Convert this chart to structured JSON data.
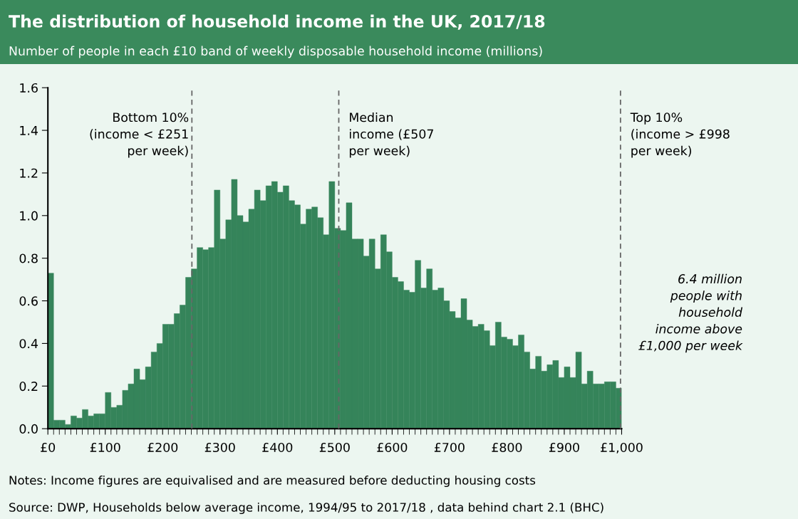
{
  "chart_data": {
    "type": "histogram",
    "title": "The distribution of household income in the UK, 2017/18",
    "subtitle": "Number of people in each £10 band of weekly disposable household income (millions)",
    "bins": [
      0,
      10,
      20,
      30,
      40,
      50,
      60,
      70,
      80,
      90,
      100,
      110,
      120,
      130,
      140,
      150,
      160,
      170,
      180,
      190,
      200,
      210,
      220,
      230,
      240,
      250,
      260,
      270,
      280,
      290,
      300,
      310,
      320,
      330,
      340,
      350,
      360,
      370,
      380,
      390,
      400,
      410,
      420,
      430,
      440,
      450,
      460,
      470,
      480,
      490,
      500,
      510,
      520,
      530,
      540,
      550,
      560,
      570,
      580,
      590,
      600,
      610,
      620,
      630,
      640,
      650,
      660,
      670,
      680,
      690,
      700,
      710,
      720,
      730,
      740,
      750,
      760,
      770,
      780,
      790,
      800,
      810,
      820,
      830,
      840,
      850,
      860,
      870,
      880,
      890,
      900,
      910,
      920,
      930,
      940,
      950,
      960,
      970,
      980,
      990,
      1000
    ],
    "values": [
      0.73,
      0.04,
      0.04,
      0.02,
      0.06,
      0.05,
      0.09,
      0.06,
      0.07,
      0.07,
      0.17,
      0.1,
      0.11,
      0.18,
      0.21,
      0.28,
      0.23,
      0.29,
      0.36,
      0.4,
      0.49,
      0.49,
      0.54,
      0.58,
      0.71,
      0.75,
      0.85,
      0.84,
      0.85,
      1.12,
      0.89,
      0.98,
      1.17,
      1.0,
      0.97,
      1.03,
      1.12,
      1.07,
      1.14,
      1.16,
      1.11,
      1.14,
      1.07,
      1.05,
      0.96,
      1.03,
      1.04,
      0.99,
      0.91,
      1.16,
      0.94,
      0.93,
      1.06,
      0.89,
      0.89,
      0.81,
      0.89,
      0.75,
      0.91,
      0.83,
      0.71,
      0.69,
      0.65,
      0.64,
      0.79,
      0.66,
      0.75,
      0.65,
      0.66,
      0.6,
      0.55,
      0.52,
      0.61,
      0.51,
      0.48,
      0.49,
      0.46,
      0.39,
      0.5,
      0.43,
      0.42,
      0.39,
      0.44,
      0.36,
      0.28,
      0.34,
      0.27,
      0.3,
      0.32,
      0.24,
      0.29,
      0.24,
      0.36,
      0.21,
      0.27,
      0.21,
      0.21,
      0.22,
      0.22,
      0.19
    ],
    "color": "#35845a",
    "xlim": [
      0,
      1000
    ],
    "xticks": [
      {
        "value": 0,
        "label": "£0"
      },
      {
        "value": 100,
        "label": "£100"
      },
      {
        "value": 200,
        "label": "£200"
      },
      {
        "value": 300,
        "label": "£300"
      },
      {
        "value": 400,
        "label": "£400"
      },
      {
        "value": 500,
        "label": "£500"
      },
      {
        "value": 600,
        "label": "£600"
      },
      {
        "value": 700,
        "label": "£700"
      },
      {
        "value": 800,
        "label": "£800"
      },
      {
        "value": 900,
        "label": "£900"
      },
      {
        "value": 1000,
        "label": "£1,000"
      }
    ],
    "ylim": [
      0,
      1.6
    ],
    "yticks": [
      {
        "value": 0,
        "label": "0.0"
      },
      {
        "value": 0.2,
        "label": "0.2"
      },
      {
        "value": 0.4,
        "label": "0.4"
      },
      {
        "value": 0.6,
        "label": "0.6"
      },
      {
        "value": 0.8,
        "label": "0.8"
      },
      {
        "value": 1.0,
        "label": "1.0"
      },
      {
        "value": 1.2,
        "label": "1.2"
      },
      {
        "value": 1.4,
        "label": "1.4"
      },
      {
        "value": 1.6,
        "label": "1.6"
      }
    ],
    "grid": false,
    "legend": false,
    "ref_lines": [
      {
        "axis": "x",
        "value": 251,
        "label": "Bottom 10%\n(income < £251\nper week)",
        "color": "#666666",
        "line_style": "dashed"
      },
      {
        "axis": "x",
        "value": 507,
        "label": "Median\nincome (£507\nper week)",
        "color": "#666666",
        "line_style": "dashed"
      },
      {
        "axis": "x",
        "value": 998,
        "label": "Top 10%\n(income > £998\nper week)",
        "color": "#666666",
        "line_style": "dashed"
      }
    ],
    "annotations": [
      "6.4 million\npeople with\nhousehold\nincome above\n£1,000 per week",
      "Notes: Income figures are equivalised and are measured before deducting housing costs",
      "Source: DWP, Households below average income, 1994/95 to 2017/18 , data behind chart 2.1 (BHC)"
    ]
  }
}
